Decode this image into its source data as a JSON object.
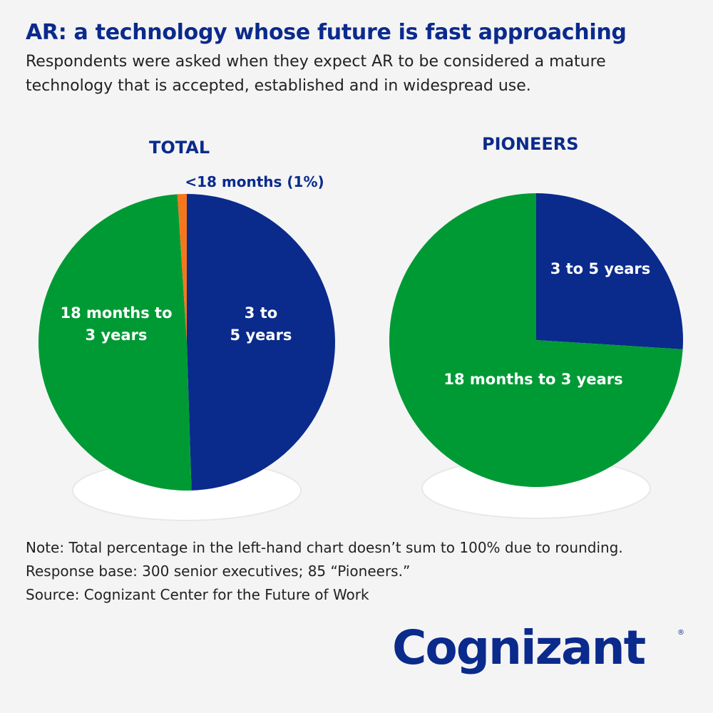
{
  "header": {
    "title": "AR: a technology whose future is fast approaching",
    "subtitle": "Respondents were asked when they expect AR to be considered a mature technology that is accepted, established and in widespread use."
  },
  "chart_data": [
    {
      "type": "pie",
      "title": "TOTAL",
      "slices": [
        {
          "label": "3 to 5 years",
          "value": 49,
          "color": "#0a2a8c",
          "display_lines": [
            "3 to",
            "5 years"
          ]
        },
        {
          "label": "18 months to 3 years",
          "value": 49,
          "color": "#009a35",
          "display_lines": [
            "18 months to",
            "3 years"
          ]
        },
        {
          "label": "<18 months (1%)",
          "value": 1,
          "color": "#f4771e",
          "display_lines": [
            "<18 months (1%)"
          ]
        }
      ]
    },
    {
      "type": "pie",
      "title": "PIONEERS",
      "slices": [
        {
          "label": "3 to 5 years",
          "value": 26,
          "color": "#0a2a8c",
          "display_lines": [
            "3 to 5 years"
          ]
        },
        {
          "label": "18 months to 3 years",
          "value": 74,
          "color": "#009a35",
          "display_lines": [
            "18 months to 3 years"
          ]
        }
      ]
    }
  ],
  "notes": {
    "line1": "Note: Total percentage in the left-hand chart doesn’t sum to 100% due to rounding.",
    "line2": "Response base: 300 senior executives; 85 “Pioneers.”",
    "line3": "Source: Cognizant Center for the Future of Work"
  },
  "logo": {
    "text": "Cognizant",
    "mark": "®",
    "color": "#0a2a8c"
  }
}
